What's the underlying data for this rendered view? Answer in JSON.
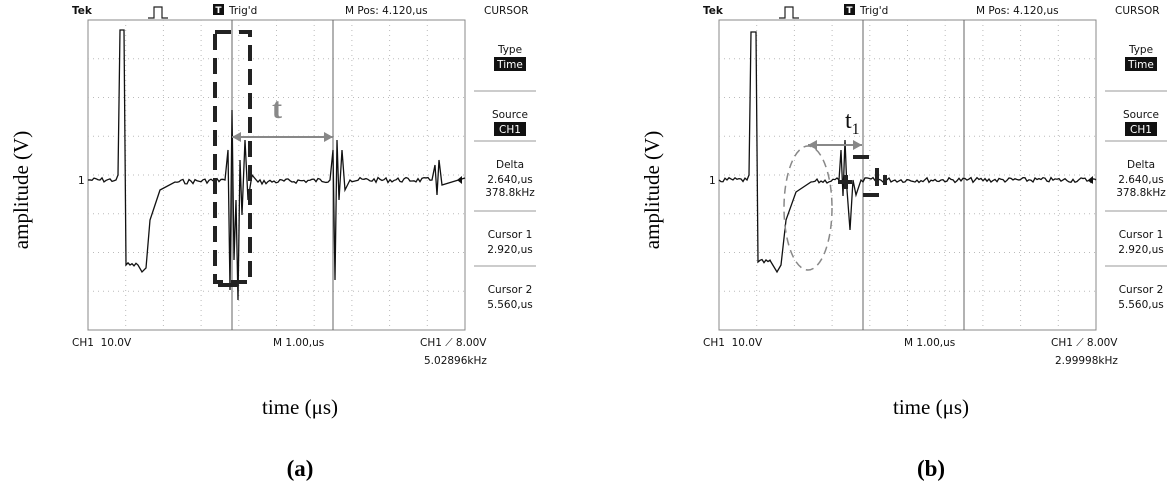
{
  "panels": [
    {
      "y_label": "amplitude (V)",
      "x_label": "time (μs)",
      "caption": "(a)",
      "annotation": {
        "main": "t"
      },
      "screen": {
        "brand": "Tek",
        "trigger_icon": "T",
        "trigger": "Trig'd",
        "position": "M Pos: 4.120,us",
        "menu_title": "CURSOR",
        "menu": [
          {
            "label": "Type",
            "values": [
              "Time"
            ]
          },
          {
            "label": "Source",
            "values": [
              "CH1"
            ]
          },
          {
            "label": "Delta",
            "values": [
              "2.640,us",
              "378.8kHz"
            ]
          },
          {
            "label": "Cursor 1",
            "values": [
              "2.920,us"
            ]
          },
          {
            "label": "Cursor 2",
            "values": [
              "5.560,us"
            ]
          }
        ],
        "channel": "CH1  10.0V",
        "timebase": "M 1.00,us",
        "trigger_level": "CH1 ⟋ 8.00V",
        "frequency": "5.02896kHz",
        "ground_marker": "1"
      }
    },
    {
      "y_label": "amplitude (V)",
      "x_label": "time (μs)",
      "caption": "(b)",
      "annotation": {
        "main": "t",
        "sub": "1"
      },
      "screen": {
        "brand": "Tek",
        "trigger_icon": "T",
        "trigger": "Trig'd",
        "position": "M Pos: 4.120,us",
        "menu_title": "CURSOR",
        "menu": [
          {
            "label": "Type",
            "values": [
              "Time"
            ]
          },
          {
            "label": "Source",
            "values": [
              "CH1"
            ]
          },
          {
            "label": "Delta",
            "values": [
              "2.640,us",
              "378.8kHz"
            ]
          },
          {
            "label": "Cursor 1",
            "values": [
              "2.920,us"
            ]
          },
          {
            "label": "Cursor 2",
            "values": [
              "5.560,us"
            ]
          }
        ],
        "channel": "CH1  10.0V",
        "timebase": "M 1.00,us",
        "trigger_level": "CH1 ⟋ 8.00V",
        "frequency": "2.99998kHz",
        "ground_marker": "1"
      }
    }
  ]
}
